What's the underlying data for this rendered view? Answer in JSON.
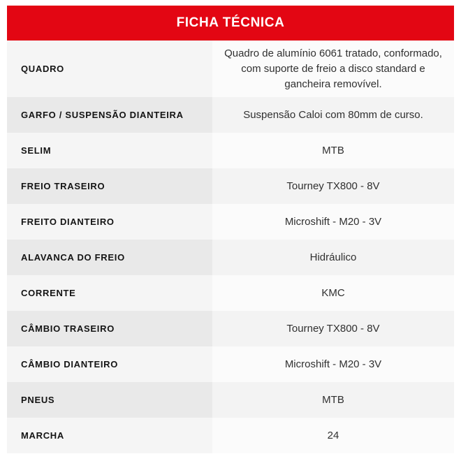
{
  "header": {
    "title": "FICHA TÉCNICA",
    "background_color": "#e30613",
    "text_color": "#ffffff"
  },
  "table": {
    "rows": [
      {
        "label": "QUADRO",
        "value": "Quadro de alumínio 6061 tratado, conformado, com suporte de freio a disco standard e gancheira removível."
      },
      {
        "label": "GARFO / SUSPENSÃO DIANTEIRA",
        "value": "Suspensão Caloi com 80mm de curso."
      },
      {
        "label": "SELIM",
        "value": "MTB"
      },
      {
        "label": "FREIO TRASEIRO",
        "value": "Tourney TX800 - 8V"
      },
      {
        "label": "FREITO DIANTEIRO",
        "value": "Microshift - M20 - 3V"
      },
      {
        "label": "ALAVANCA DO FREIO",
        "value": "Hidráulico"
      },
      {
        "label": "CORRENTE",
        "value": "KMC"
      },
      {
        "label": "CÂMBIO TRASEIRO",
        "value": "Tourney TX800 - 8V"
      },
      {
        "label": "CÂMBIO DIANTEIRO",
        "value": "Microshift - M20 - 3V"
      },
      {
        "label": "PNEUS",
        "value": "MTB"
      },
      {
        "label": "MARCHA",
        "value": "24"
      }
    ],
    "stripe_colors": {
      "light_label_bg": "#f5f5f5",
      "light_value_bg": "#fbfbfb",
      "dark_label_bg": "#e9e9e9",
      "dark_value_bg": "#f3f3f3"
    }
  }
}
